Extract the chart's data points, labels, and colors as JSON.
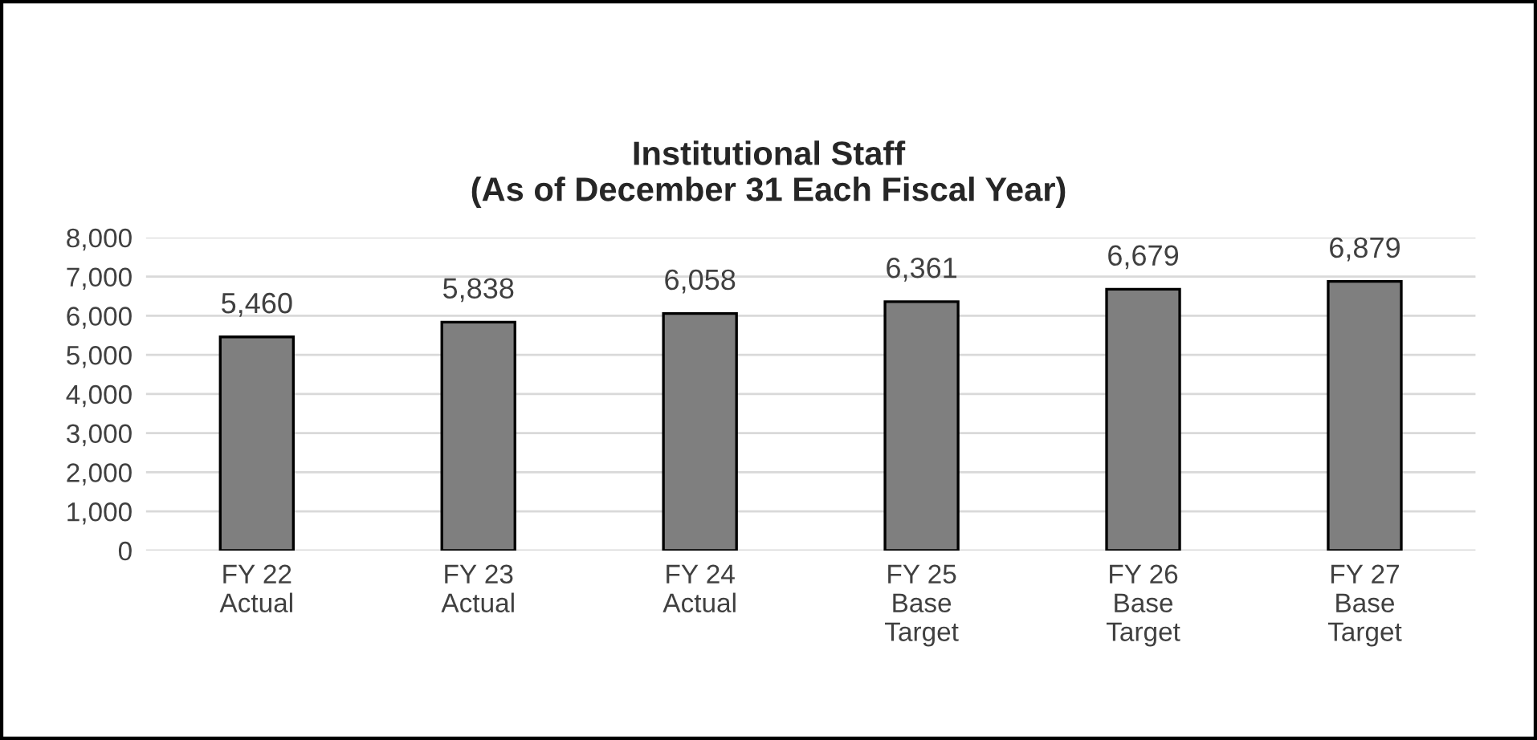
{
  "chart_data": {
    "type": "bar",
    "title": "Institutional Staff\n(As of December 31 Each Fiscal Year)",
    "categories": [
      "FY 22\nActual",
      "FY 23\nActual",
      "FY 24\nActual",
      "FY 25\nBase\nTarget",
      "FY 26\nBase\nTarget",
      "FY 27\nBase\nTarget"
    ],
    "values": [
      5460,
      5838,
      6058,
      6361,
      6679,
      6879
    ],
    "color": "#7f7f7f",
    "ylim": [
      0,
      8000
    ],
    "yticks": [
      {
        "value": 0,
        "label": "0"
      },
      {
        "value": 1000,
        "label": "1,000"
      },
      {
        "value": 2000,
        "label": "2,000"
      },
      {
        "value": 3000,
        "label": "3,000"
      },
      {
        "value": 4000,
        "label": "4,000"
      },
      {
        "value": 5000,
        "label": "5,000"
      },
      {
        "value": 6000,
        "label": "6,000"
      },
      {
        "value": 7000,
        "label": "7,000"
      },
      {
        "value": 8000,
        "label": "8,000"
      }
    ],
    "grid": "y",
    "value_labels": [
      "5,460",
      "5,838",
      "6,058",
      "6,361",
      "6,679",
      "6,879"
    ],
    "legend": false
  }
}
